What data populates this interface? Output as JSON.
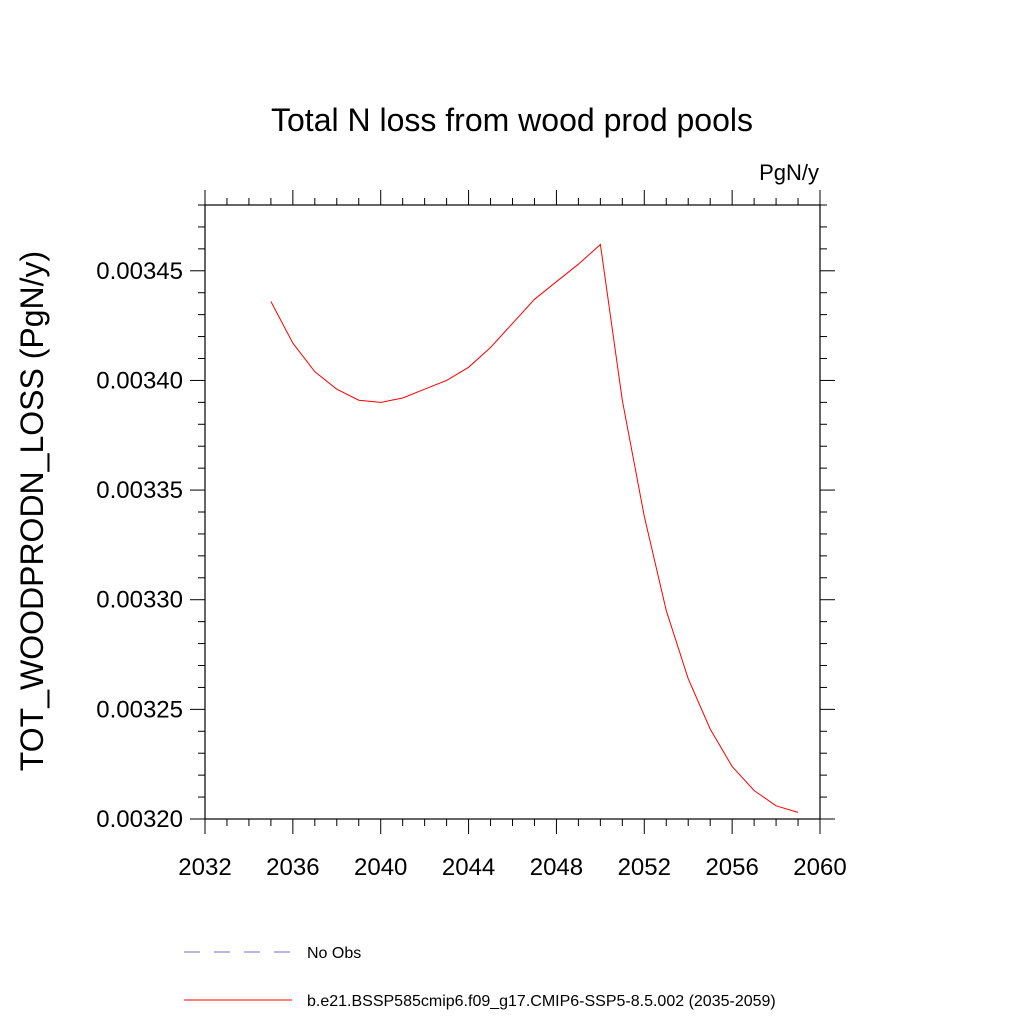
{
  "chart_data": {
    "type": "line",
    "title": "Total N loss from wood prod pools",
    "units_label": "PgN/y",
    "ylabel": "TOT_WOODPRODN_LOSS  (PgN/y)",
    "xlabel": "",
    "xlim": [
      2032,
      2060
    ],
    "ylim": [
      0.0032,
      0.00348
    ],
    "x_ticks": [
      "2032",
      "2036",
      "2040",
      "2044",
      "2048",
      "2052",
      "2056",
      "2060"
    ],
    "y_ticks": [
      "0.00320",
      "0.00325",
      "0.00330",
      "0.00335",
      "0.00340",
      "0.00345"
    ],
    "grid": false,
    "legend_position": "bottom",
    "series": [
      {
        "name": "No Obs",
        "color": "#7b68c8",
        "dashed": true,
        "x": [],
        "values": []
      },
      {
        "name": "b.e21.BSSP585cmip6.f09_g17.CMIP6-SSP5-8.5.002 (2035-2059)",
        "color": "#ff0000",
        "dashed": false,
        "x": [
          2035,
          2036,
          2037,
          2038,
          2039,
          2040,
          2041,
          2042,
          2043,
          2044,
          2045,
          2046,
          2047,
          2048,
          2049,
          2050,
          2051,
          2052,
          2053,
          2054,
          2055,
          2056,
          2057,
          2058,
          2059
        ],
        "values": [
          0.003436,
          0.003417,
          0.003404,
          0.003396,
          0.003391,
          0.00339,
          0.003392,
          0.003396,
          0.0034,
          0.003406,
          0.003415,
          0.003426,
          0.003437,
          0.003445,
          0.003453,
          0.003462,
          0.003391,
          0.003338,
          0.003295,
          0.003264,
          0.003241,
          0.003224,
          0.003213,
          0.003206,
          0.003203
        ]
      }
    ]
  }
}
